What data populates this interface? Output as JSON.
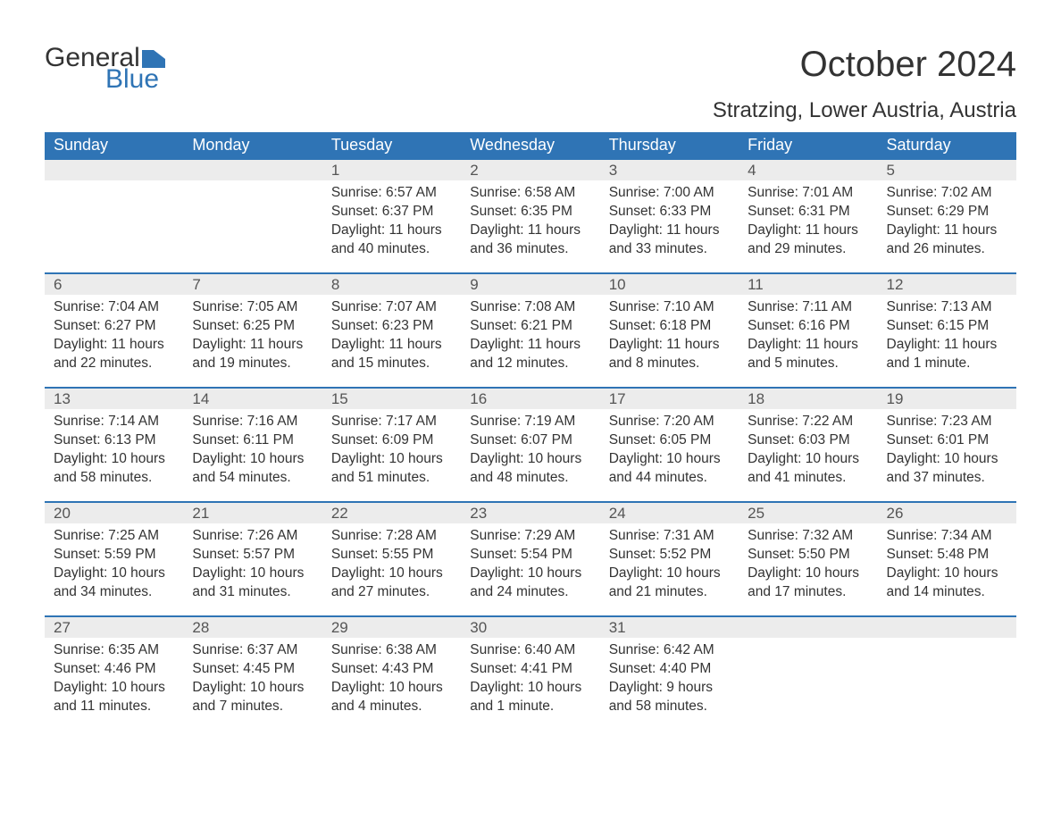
{
  "brand": {
    "word1": "General",
    "word2": "Blue",
    "flag_color": "#2f74b5"
  },
  "title": "October 2024",
  "location": "Stratzing, Lower Austria, Austria",
  "colors": {
    "header_bg": "#2f74b5",
    "header_text": "#ffffff",
    "daynum_bg": "#ececec",
    "text": "#333333",
    "row_border": "#2f74b5"
  },
  "fonts": {
    "title_size": 40,
    "location_size": 24,
    "th_size": 18,
    "cell_size": 15.5
  },
  "weekdays": [
    "Sunday",
    "Monday",
    "Tuesday",
    "Wednesday",
    "Thursday",
    "Friday",
    "Saturday"
  ],
  "weeks": [
    [
      null,
      null,
      {
        "n": "1",
        "sunrise": "Sunrise: 6:57 AM",
        "sunset": "Sunset: 6:37 PM",
        "daylight": "Daylight: 11 hours and 40 minutes."
      },
      {
        "n": "2",
        "sunrise": "Sunrise: 6:58 AM",
        "sunset": "Sunset: 6:35 PM",
        "daylight": "Daylight: 11 hours and 36 minutes."
      },
      {
        "n": "3",
        "sunrise": "Sunrise: 7:00 AM",
        "sunset": "Sunset: 6:33 PM",
        "daylight": "Daylight: 11 hours and 33 minutes."
      },
      {
        "n": "4",
        "sunrise": "Sunrise: 7:01 AM",
        "sunset": "Sunset: 6:31 PM",
        "daylight": "Daylight: 11 hours and 29 minutes."
      },
      {
        "n": "5",
        "sunrise": "Sunrise: 7:02 AM",
        "sunset": "Sunset: 6:29 PM",
        "daylight": "Daylight: 11 hours and 26 minutes."
      }
    ],
    [
      {
        "n": "6",
        "sunrise": "Sunrise: 7:04 AM",
        "sunset": "Sunset: 6:27 PM",
        "daylight": "Daylight: 11 hours and 22 minutes."
      },
      {
        "n": "7",
        "sunrise": "Sunrise: 7:05 AM",
        "sunset": "Sunset: 6:25 PM",
        "daylight": "Daylight: 11 hours and 19 minutes."
      },
      {
        "n": "8",
        "sunrise": "Sunrise: 7:07 AM",
        "sunset": "Sunset: 6:23 PM",
        "daylight": "Daylight: 11 hours and 15 minutes."
      },
      {
        "n": "9",
        "sunrise": "Sunrise: 7:08 AM",
        "sunset": "Sunset: 6:21 PM",
        "daylight": "Daylight: 11 hours and 12 minutes."
      },
      {
        "n": "10",
        "sunrise": "Sunrise: 7:10 AM",
        "sunset": "Sunset: 6:18 PM",
        "daylight": "Daylight: 11 hours and 8 minutes."
      },
      {
        "n": "11",
        "sunrise": "Sunrise: 7:11 AM",
        "sunset": "Sunset: 6:16 PM",
        "daylight": "Daylight: 11 hours and 5 minutes."
      },
      {
        "n": "12",
        "sunrise": "Sunrise: 7:13 AM",
        "sunset": "Sunset: 6:15 PM",
        "daylight": "Daylight: 11 hours and 1 minute."
      }
    ],
    [
      {
        "n": "13",
        "sunrise": "Sunrise: 7:14 AM",
        "sunset": "Sunset: 6:13 PM",
        "daylight": "Daylight: 10 hours and 58 minutes."
      },
      {
        "n": "14",
        "sunrise": "Sunrise: 7:16 AM",
        "sunset": "Sunset: 6:11 PM",
        "daylight": "Daylight: 10 hours and 54 minutes."
      },
      {
        "n": "15",
        "sunrise": "Sunrise: 7:17 AM",
        "sunset": "Sunset: 6:09 PM",
        "daylight": "Daylight: 10 hours and 51 minutes."
      },
      {
        "n": "16",
        "sunrise": "Sunrise: 7:19 AM",
        "sunset": "Sunset: 6:07 PM",
        "daylight": "Daylight: 10 hours and 48 minutes."
      },
      {
        "n": "17",
        "sunrise": "Sunrise: 7:20 AM",
        "sunset": "Sunset: 6:05 PM",
        "daylight": "Daylight: 10 hours and 44 minutes."
      },
      {
        "n": "18",
        "sunrise": "Sunrise: 7:22 AM",
        "sunset": "Sunset: 6:03 PM",
        "daylight": "Daylight: 10 hours and 41 minutes."
      },
      {
        "n": "19",
        "sunrise": "Sunrise: 7:23 AM",
        "sunset": "Sunset: 6:01 PM",
        "daylight": "Daylight: 10 hours and 37 minutes."
      }
    ],
    [
      {
        "n": "20",
        "sunrise": "Sunrise: 7:25 AM",
        "sunset": "Sunset: 5:59 PM",
        "daylight": "Daylight: 10 hours and 34 minutes."
      },
      {
        "n": "21",
        "sunrise": "Sunrise: 7:26 AM",
        "sunset": "Sunset: 5:57 PM",
        "daylight": "Daylight: 10 hours and 31 minutes."
      },
      {
        "n": "22",
        "sunrise": "Sunrise: 7:28 AM",
        "sunset": "Sunset: 5:55 PM",
        "daylight": "Daylight: 10 hours and 27 minutes."
      },
      {
        "n": "23",
        "sunrise": "Sunrise: 7:29 AM",
        "sunset": "Sunset: 5:54 PM",
        "daylight": "Daylight: 10 hours and 24 minutes."
      },
      {
        "n": "24",
        "sunrise": "Sunrise: 7:31 AM",
        "sunset": "Sunset: 5:52 PM",
        "daylight": "Daylight: 10 hours and 21 minutes."
      },
      {
        "n": "25",
        "sunrise": "Sunrise: 7:32 AM",
        "sunset": "Sunset: 5:50 PM",
        "daylight": "Daylight: 10 hours and 17 minutes."
      },
      {
        "n": "26",
        "sunrise": "Sunrise: 7:34 AM",
        "sunset": "Sunset: 5:48 PM",
        "daylight": "Daylight: 10 hours and 14 minutes."
      }
    ],
    [
      {
        "n": "27",
        "sunrise": "Sunrise: 6:35 AM",
        "sunset": "Sunset: 4:46 PM",
        "daylight": "Daylight: 10 hours and 11 minutes."
      },
      {
        "n": "28",
        "sunrise": "Sunrise: 6:37 AM",
        "sunset": "Sunset: 4:45 PM",
        "daylight": "Daylight: 10 hours and 7 minutes."
      },
      {
        "n": "29",
        "sunrise": "Sunrise: 6:38 AM",
        "sunset": "Sunset: 4:43 PM",
        "daylight": "Daylight: 10 hours and 4 minutes."
      },
      {
        "n": "30",
        "sunrise": "Sunrise: 6:40 AM",
        "sunset": "Sunset: 4:41 PM",
        "daylight": "Daylight: 10 hours and 1 minute."
      },
      {
        "n": "31",
        "sunrise": "Sunrise: 6:42 AM",
        "sunset": "Sunset: 4:40 PM",
        "daylight": "Daylight: 9 hours and 58 minutes."
      },
      null,
      null
    ]
  ]
}
